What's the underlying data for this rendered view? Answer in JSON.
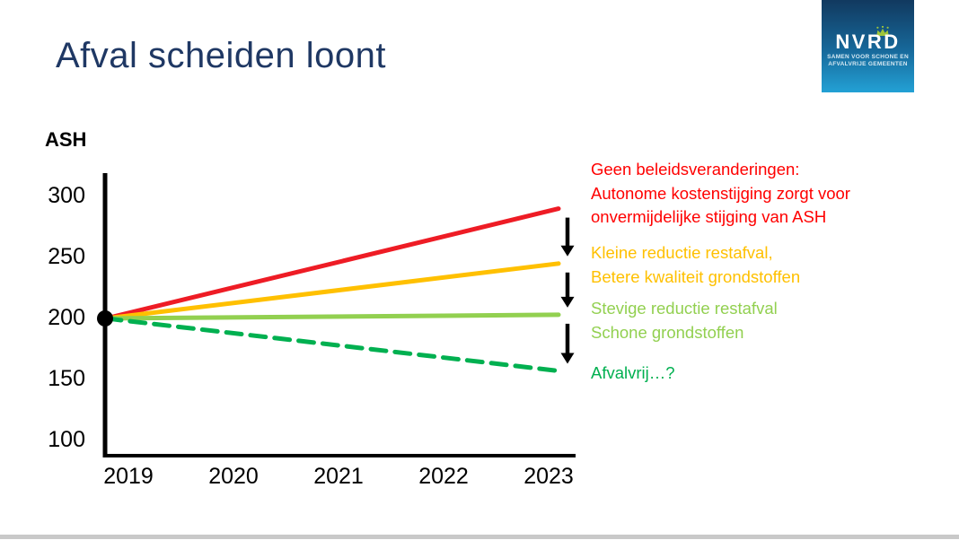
{
  "slide": {
    "title": "Afval scheiden loont",
    "title_color": "#1f3864",
    "background": "#ffffff",
    "footer_bar_color": "#c9c9c9"
  },
  "logo": {
    "wordmark": "NVRD",
    "tagline_line1": "SAMEN VOOR SCHONE EN",
    "tagline_line2": "AFVALVRIJE GEMEENTEN",
    "crown_color": "#9ec53b",
    "bg_gradient_top": "#11395f",
    "bg_gradient_mid": "#17699b",
    "bg_gradient_bottom": "#23a1d5",
    "text_color": "#ffffff"
  },
  "chart_data": {
    "type": "line",
    "title": "",
    "xlabel": "",
    "ylabel": "ASH",
    "x_tick_labels": [
      "2019",
      "2020",
      "2021",
      "2022",
      "2023"
    ],
    "y_ticks": [
      300,
      250,
      200,
      150,
      100
    ],
    "ylim": [
      85,
      320
    ],
    "grid": false,
    "axis_color": "#000000",
    "start_point": {
      "x": "2019",
      "value": 200
    },
    "series": [
      {
        "name": "geen-beleidsveranderingen",
        "color": "#ee1c25",
        "style": "solid",
        "x": [
          "2019",
          "2023"
        ],
        "values": [
          200,
          290
        ]
      },
      {
        "name": "kleine-reductie-restafval",
        "color": "#ffc000",
        "style": "solid",
        "x": [
          "2019",
          "2023"
        ],
        "values": [
          200,
          245
        ]
      },
      {
        "name": "stevige-reductie-restafval",
        "color": "#92d050",
        "style": "solid",
        "x": [
          "2019",
          "2023"
        ],
        "values": [
          200,
          203
        ]
      },
      {
        "name": "afvalvrij",
        "color": "#00b050",
        "style": "dashed",
        "x": [
          "2019",
          "2023"
        ],
        "values": [
          200,
          157
        ]
      }
    ],
    "arrows": {
      "color": "#000000",
      "pairs": [
        [
          0,
          1
        ],
        [
          1,
          2
        ],
        [
          2,
          3
        ]
      ]
    }
  },
  "annotations": [
    {
      "color": "#ff0000",
      "lines": [
        "Geen beleidsveranderingen:",
        "Autonome kostenstijging zorgt voor",
        "onvermijdelijke stijging van ASH"
      ]
    },
    {
      "color": "#ffc000",
      "lines": [
        "Kleine reductie restafval,",
        "Betere kwaliteit grondstoffen"
      ]
    },
    {
      "color": "#92d050",
      "lines": [
        "Stevige reductie restafval",
        "Schone grondstoffen"
      ]
    },
    {
      "color": "#00b050",
      "lines": [
        "Afvalvrij…?"
      ]
    }
  ]
}
